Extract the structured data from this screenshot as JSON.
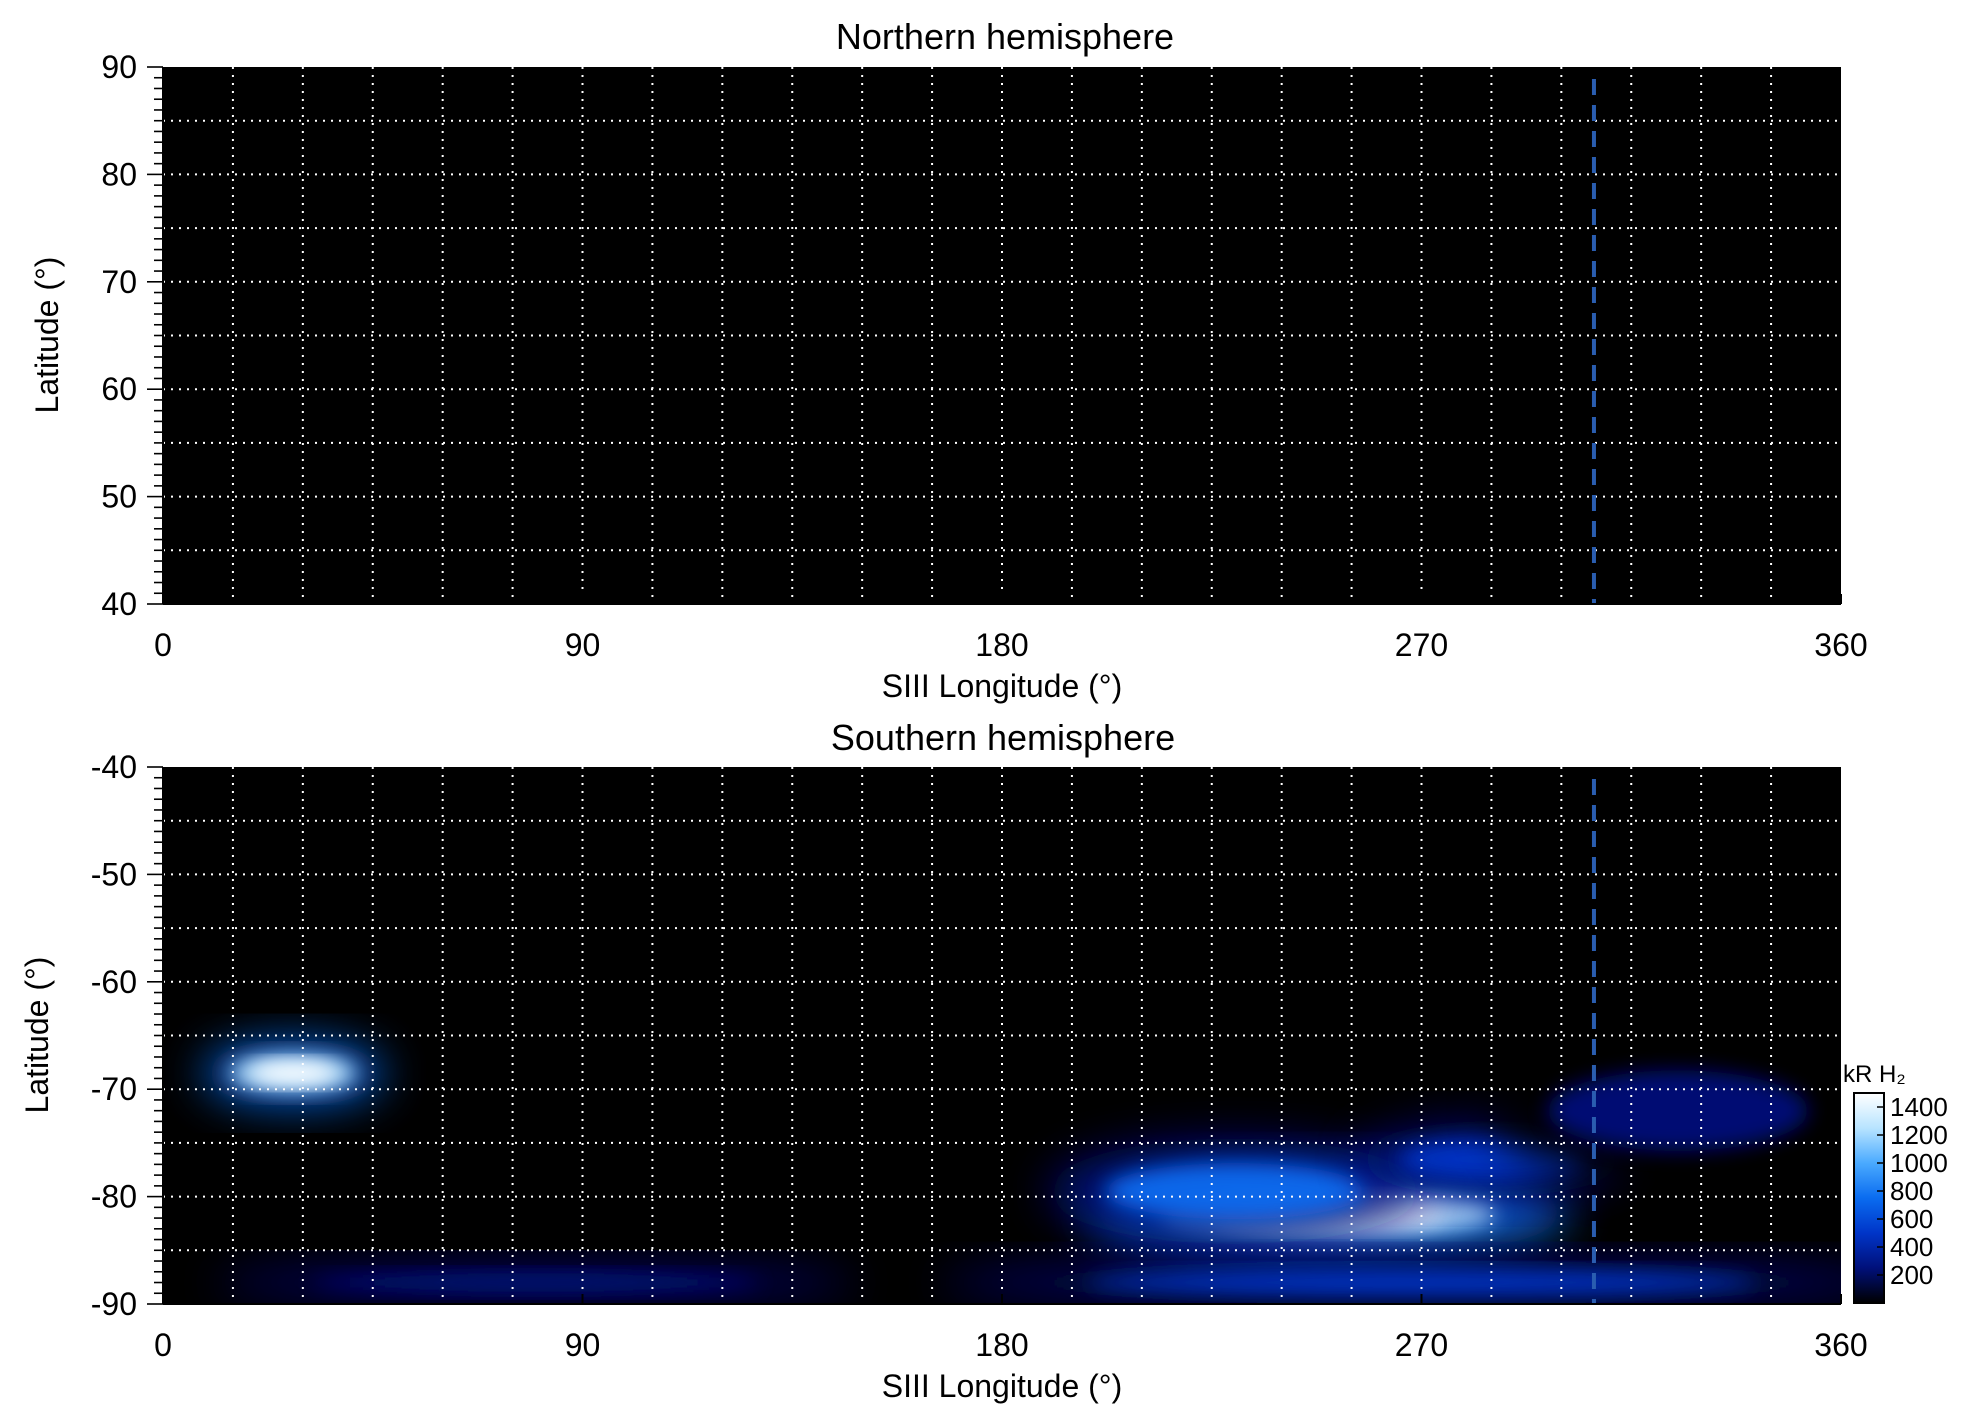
{
  "figure": {
    "background": "#ffffff",
    "plot_background": "#000000",
    "grid_color": "#ffffff",
    "marker_color": "#2a5db0"
  },
  "chart_data": [
    {
      "type": "heatmap",
      "title": "Northern hemisphere",
      "xlabel": "SIII Longitude (°)",
      "ylabel": "Latitude (°)",
      "xlim": [
        0,
        360
      ],
      "ylim": [
        40,
        90
      ],
      "xticks": [
        0,
        90,
        180,
        270,
        360
      ],
      "xtick_labels": [
        "0",
        "90",
        "180",
        "270",
        "360"
      ],
      "yticks": [
        40,
        50,
        60,
        70,
        80,
        90
      ],
      "ytick_labels": [
        "40",
        "50",
        "60",
        "70",
        "80",
        "90"
      ],
      "grid": true,
      "grid_x_step": 15,
      "grid_y_step": 5,
      "marker_longitude": 307,
      "emission_regions": []
    },
    {
      "type": "heatmap",
      "title": "Southern hemisphere",
      "xlabel": "SIII Longitude (°)",
      "ylabel": "Latitude (°)",
      "xlim": [
        0,
        360
      ],
      "ylim": [
        -90,
        -40
      ],
      "xticks": [
        0,
        90,
        180,
        270,
        360
      ],
      "xtick_labels": [
        "0",
        "90",
        "180",
        "270",
        "360"
      ],
      "yticks": [
        -90,
        -80,
        -70,
        -60,
        -50,
        -40
      ],
      "ytick_labels": [
        "-90",
        "-80",
        "-70",
        "-60",
        "-50",
        "-40"
      ],
      "grid": true,
      "grid_x_step": 15,
      "grid_y_step": 5,
      "marker_longitude": 307,
      "emission_regions": [
        {
          "lon_center": 28,
          "lat_center": -68.5,
          "lon_halfwidth": 17,
          "lat_halfwidth": 2.2,
          "peak_kR": 1500
        },
        {
          "lon_center": 250,
          "lat_center": -81.5,
          "lon_halfwidth": 45,
          "lat_halfwidth": 3.0,
          "peak_kR": 1500
        },
        {
          "lon_center": 230,
          "lat_center": -79.5,
          "lon_halfwidth": 35,
          "lat_halfwidth": 3.5,
          "peak_kR": 800
        },
        {
          "lon_center": 285,
          "lat_center": -76.5,
          "lon_halfwidth": 25,
          "lat_halfwidth": 2.5,
          "peak_kR": 700
        },
        {
          "lon_center": 325,
          "lat_center": -72,
          "lon_halfwidth": 35,
          "lat_halfwidth": 5,
          "peak_kR": 250
        },
        {
          "lon_center": 80,
          "lat_center": -88,
          "lon_halfwidth": 60,
          "lat_halfwidth": 1.2,
          "peak_kR": 400
        },
        {
          "lon_center": 270,
          "lat_center": -88,
          "lon_halfwidth": 90,
          "lat_halfwidth": 1.5,
          "peak_kR": 500
        }
      ],
      "colorbar": {
        "label": "kR H₂",
        "range": [
          0,
          1500
        ],
        "ticks": [
          200,
          400,
          600,
          800,
          1000,
          1200,
          1400
        ],
        "tick_labels": [
          "200",
          "400",
          "600",
          "800",
          "1000",
          "1200",
          "1400"
        ],
        "colors": [
          "#000000",
          "#00107a",
          "#0035c8",
          "#0a6cf0",
          "#4aaaff",
          "#b8e4ff",
          "#ffffff"
        ]
      }
    }
  ]
}
